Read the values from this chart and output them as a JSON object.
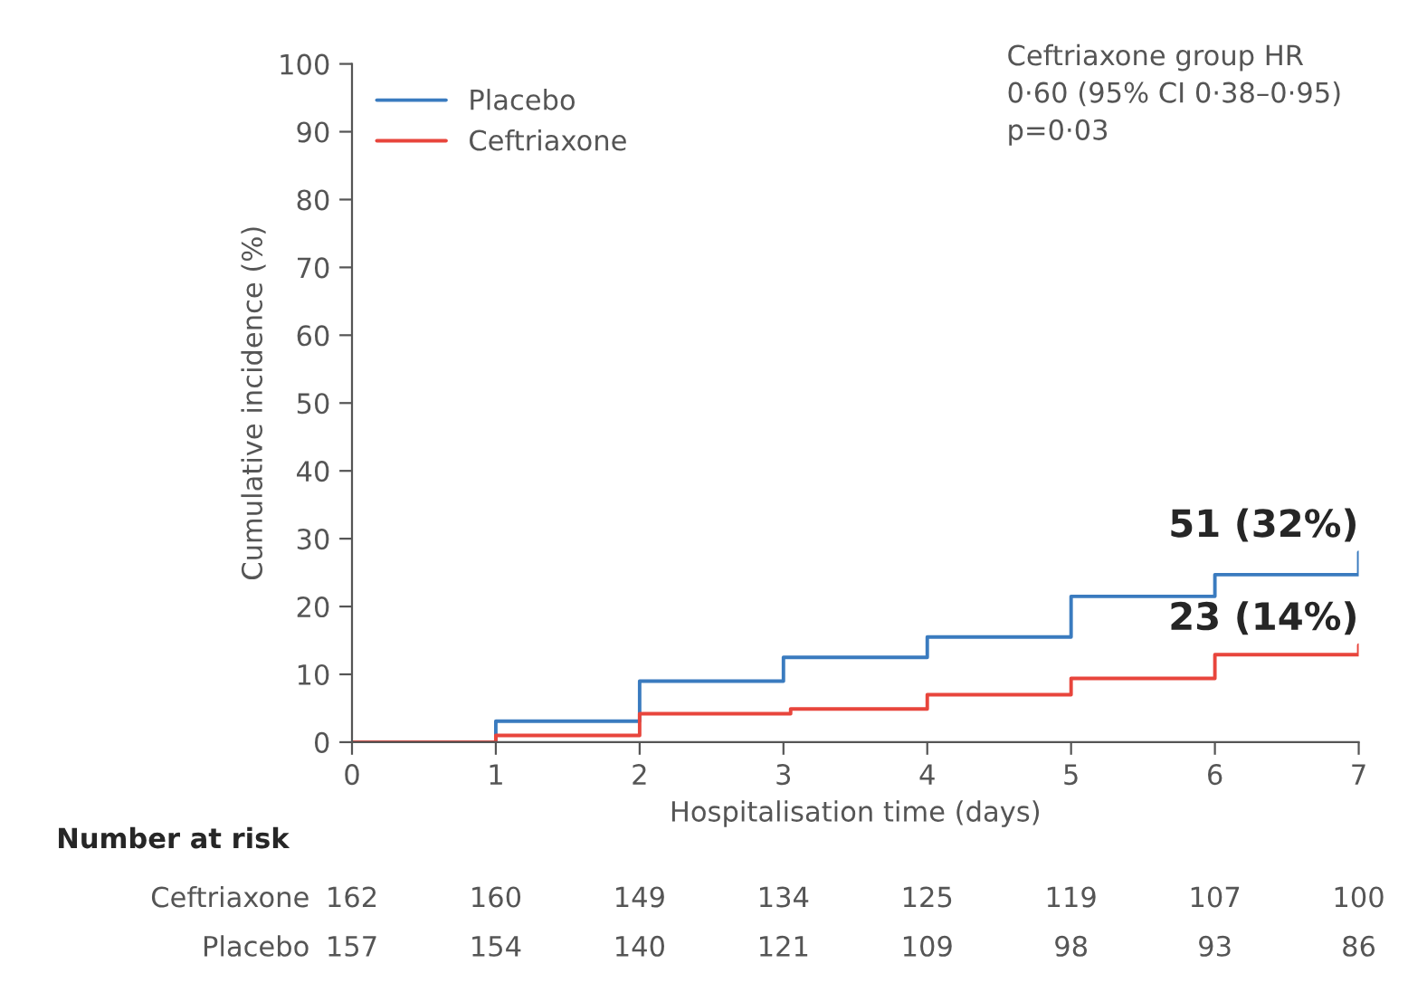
{
  "chart_data": {
    "type": "step",
    "xlabel": "Hospitalisation time (days)",
    "ylabel": "Cumulative incidence (%)",
    "xlim": [
      0,
      7
    ],
    "xticks": [
      0,
      1,
      2,
      3,
      4,
      5,
      6,
      7
    ],
    "ylim": [
      0,
      100
    ],
    "yticks": [
      0,
      10,
      20,
      30,
      40,
      50,
      60,
      70,
      80,
      90,
      100
    ],
    "grid": false,
    "legend": "top left",
    "series": [
      {
        "name": "Placebo",
        "color": "#3a7bbf",
        "x": [
          0,
          1,
          2,
          3,
          4,
          5,
          6,
          7,
          7
        ],
        "values": [
          0,
          3.1,
          9,
          12.5,
          15.5,
          21.5,
          24.7,
          24.7,
          28
        ]
      },
      {
        "name": "Ceftriaxone",
        "color": "#e8453c",
        "x": [
          0,
          1,
          2,
          3.05,
          4,
          5,
          6,
          7,
          7
        ],
        "values": [
          0,
          1,
          4.2,
          4.9,
          7,
          9.4,
          12.9,
          12.9,
          14.3
        ]
      }
    ],
    "annotations": [
      "Ceftriaxone group HR\n0·60 (95% CI 0·38–0·95)\np=0·03",
      {
        "text": "51 (32%)",
        "x": 7,
        "y": 28
      },
      {
        "text": "23 (14%)",
        "x": 7,
        "y": 14.3
      },
      "Number at risk",
      "Ceftriaxone 162 160 149 134 125 119 107 100",
      "Placebo 157 154 140 121 109 98 93 86"
    ]
  }
}
